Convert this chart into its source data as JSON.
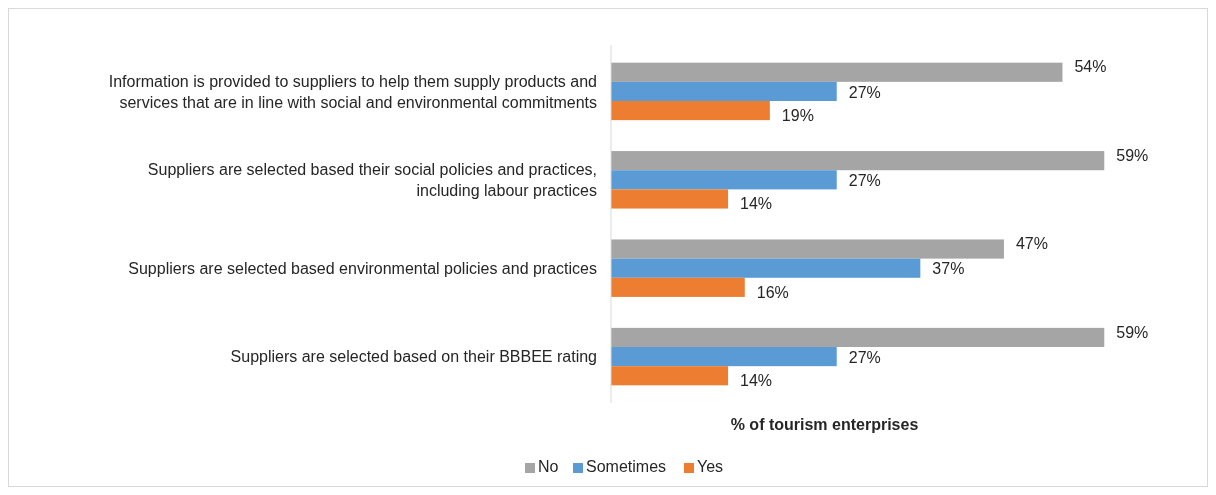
{
  "chart_data": {
    "type": "bar",
    "orientation": "horizontal",
    "xlabel": "% of tourism enterprises",
    "categories": [
      "Information is provided to suppliers to help them supply products and services that are in line with social and environmental commitments",
      "Suppliers are selected based their social policies and practices, including labour practices",
      "Suppliers are selected based environmental policies and practices",
      "Suppliers are selected based on their BBBEE rating"
    ],
    "series": [
      {
        "name": "No",
        "color": "#a5a5a5",
        "values": [
          54,
          59,
          47,
          59
        ],
        "value_labels": [
          "54%",
          "59%",
          "47%",
          "59%"
        ]
      },
      {
        "name": "Sometimes",
        "color": "#5b9bd5",
        "values": [
          27,
          27,
          37,
          27
        ],
        "value_labels": [
          "27%",
          "27%",
          "37%",
          "27%"
        ]
      },
      {
        "name": "Yes",
        "color": "#ed7d31",
        "values": [
          19,
          14,
          16,
          14
        ],
        "value_labels": [
          "19%",
          "14%",
          "16%",
          "14%"
        ]
      }
    ],
    "legend": "bottom"
  }
}
